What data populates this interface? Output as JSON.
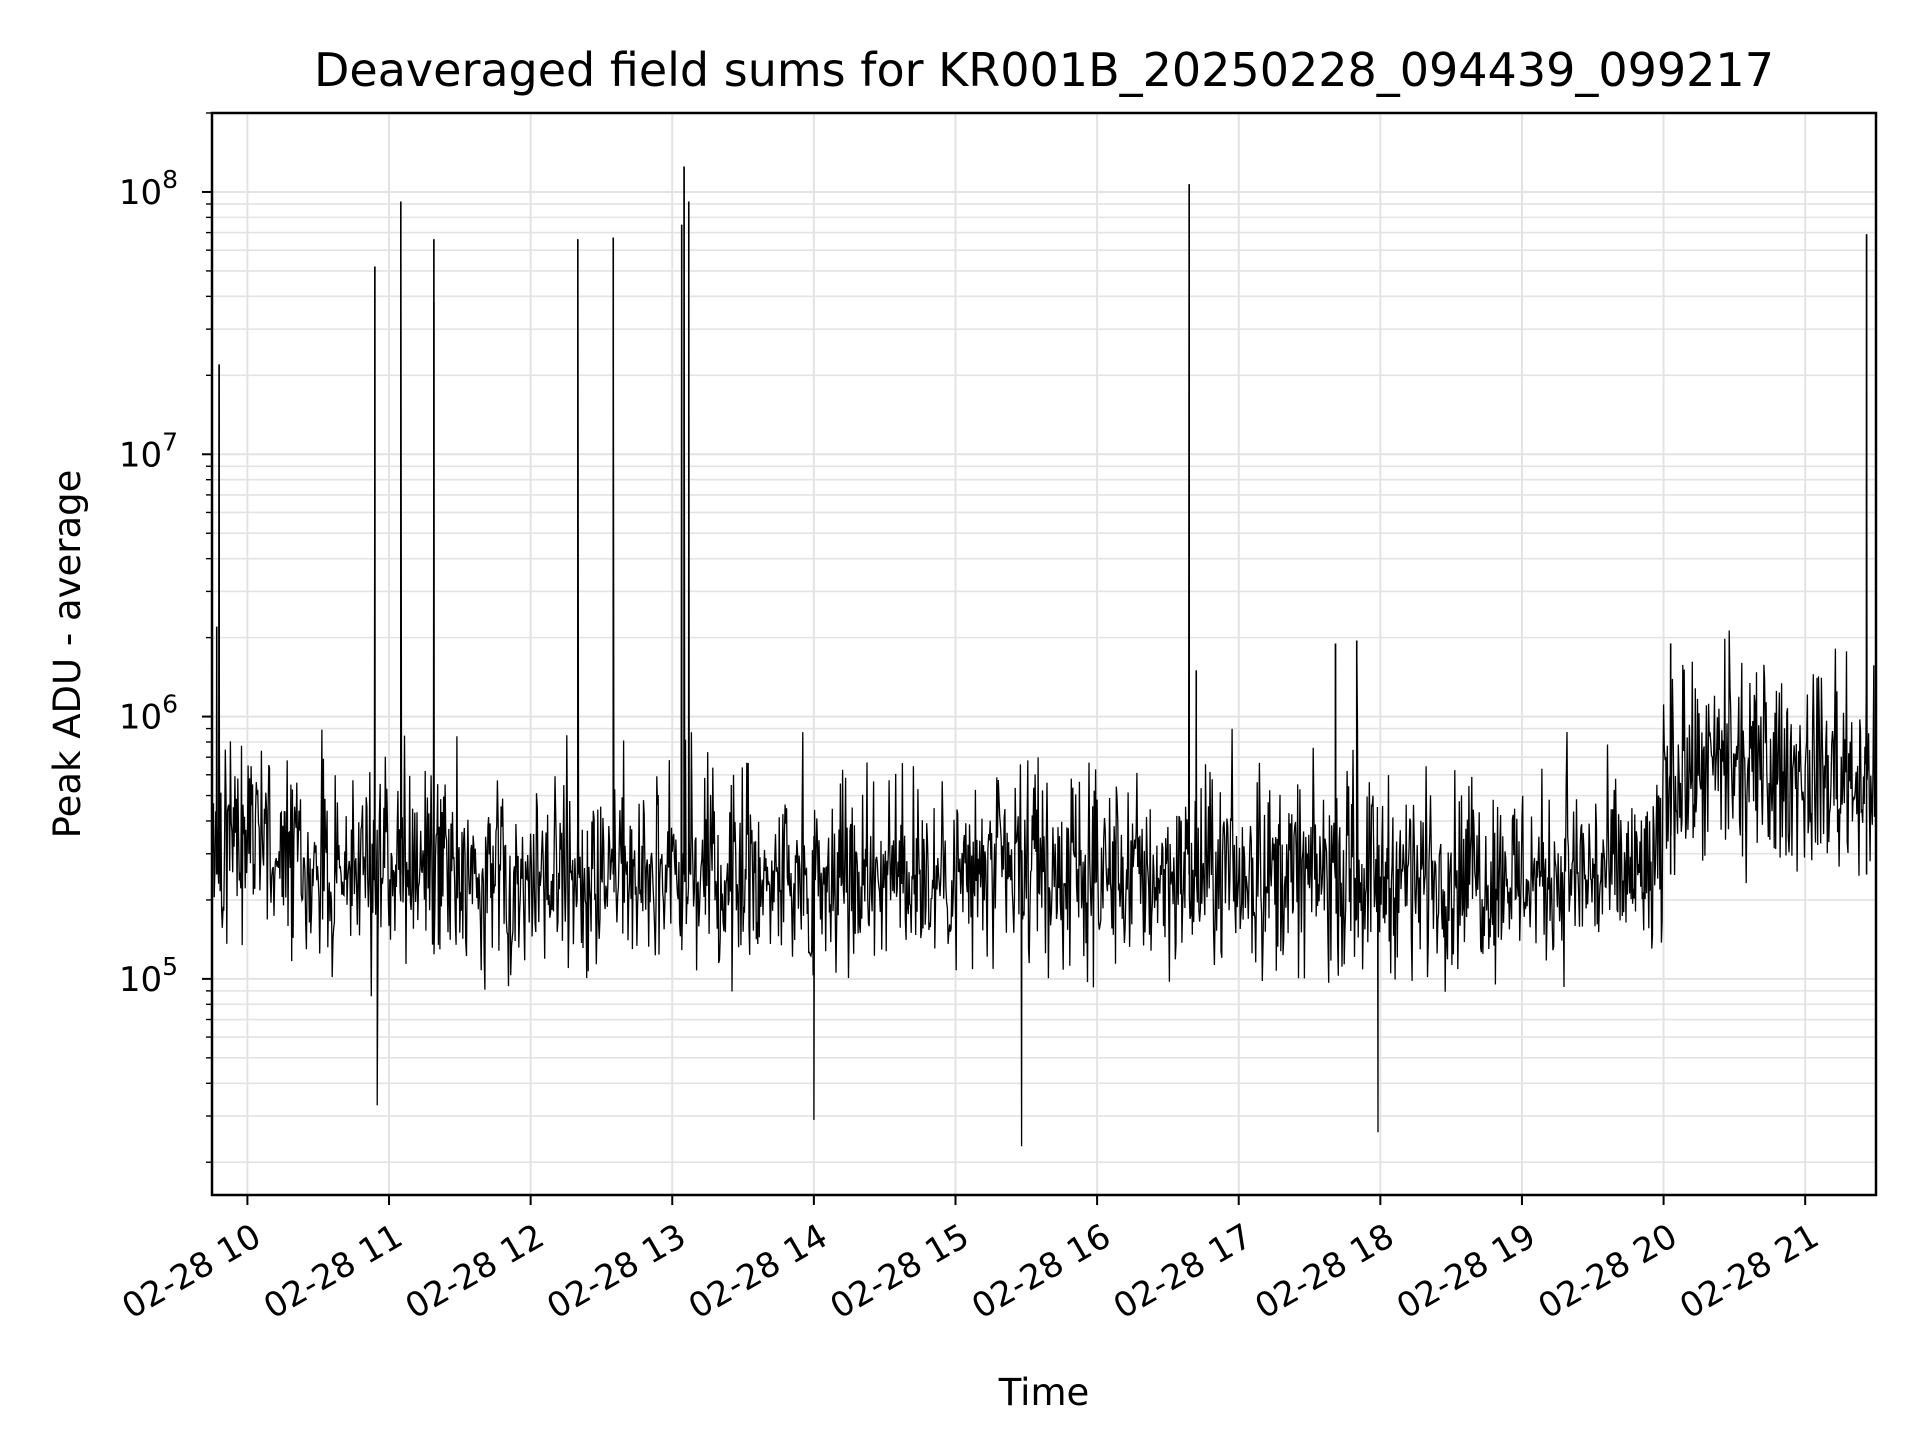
{
  "chart_data": {
    "type": "line",
    "title": "Deaveraged field sums for KR001B_20250228_094439_099217",
    "xlabel": "Time",
    "ylabel": "Peak ADU - average",
    "yscale": "log",
    "ylim": [
      15000,
      200000000
    ],
    "xlim": [
      "2025-02-28 09:45",
      "2025-02-28 21:30"
    ],
    "grid": true,
    "line_color": "#000000",
    "x_tick_labels": [
      "02-28 10",
      "02-28 11",
      "02-28 12",
      "02-28 13",
      "02-28 14",
      "02-28 15",
      "02-28 16",
      "02-28 17",
      "02-28 18",
      "02-28 19",
      "02-28 20",
      "02-28 21"
    ],
    "x_tick_times": [
      "2025-02-28 10:00",
      "2025-02-28 11:00",
      "2025-02-28 12:00",
      "2025-02-28 13:00",
      "2025-02-28 14:00",
      "2025-02-28 15:00",
      "2025-02-28 16:00",
      "2025-02-28 17:00",
      "2025-02-28 18:00",
      "2025-02-28 19:00",
      "2025-02-28 20:00",
      "2025-02-28 21:00"
    ],
    "y_tick_labels": [
      {
        "base": "10",
        "exp": "5",
        "value": 100000
      },
      {
        "base": "10",
        "exp": "6",
        "value": 1000000
      },
      {
        "base": "10",
        "exp": "7",
        "value": 10000000
      },
      {
        "base": "10",
        "exp": "8",
        "value": 100000000
      }
    ],
    "series": [
      {
        "baseline_segments": [
          {
            "start": "2025-02-28 09:45",
            "end": "2025-02-28 10:10",
            "median": 350000
          },
          {
            "start": "2025-02-28 10:10",
            "end": "2025-02-28 20:00",
            "median": 250000
          },
          {
            "start": "2025-02-28 20:00",
            "end": "2025-02-28 21:30",
            "median": 600000
          }
        ],
        "spikes": [
          {
            "x": "2025-02-28 09:48",
            "y": 22000000
          },
          {
            "x": "2025-02-28 09:47",
            "y": 2200000
          },
          {
            "x": "2025-02-28 10:54",
            "y": 52000000
          },
          {
            "x": "2025-02-28 11:05",
            "y": 92000000
          },
          {
            "x": "2025-02-28 11:19",
            "y": 66000000
          },
          {
            "x": "2025-02-28 11:19",
            "y": 38000000
          },
          {
            "x": "2025-02-28 12:20",
            "y": 66000000
          },
          {
            "x": "2025-02-28 12:35",
            "y": 67000000
          },
          {
            "x": "2025-02-28 13:04",
            "y": 75000000
          },
          {
            "x": "2025-02-28 13:05",
            "y": 125000000
          },
          {
            "x": "2025-02-28 13:07",
            "y": 92000000
          },
          {
            "x": "2025-02-28 16:39",
            "y": 107000000
          },
          {
            "x": "2025-02-28 16:42",
            "y": 1500000
          },
          {
            "x": "2025-02-28 17:41",
            "y": 1900000
          },
          {
            "x": "2025-02-28 17:50",
            "y": 1950000
          },
          {
            "x": "2025-02-28 20:03",
            "y": 1900000
          },
          {
            "x": "2025-02-28 21:26",
            "y": 69000000
          }
        ],
        "dips": [
          {
            "x": "2025-02-28 10:55",
            "y": 33000
          },
          {
            "x": "2025-02-28 15:28",
            "y": 23000
          },
          {
            "x": "2025-02-28 17:59",
            "y": 26000
          },
          {
            "x": "2025-02-28 14:00",
            "y": 29000
          }
        ]
      }
    ]
  }
}
